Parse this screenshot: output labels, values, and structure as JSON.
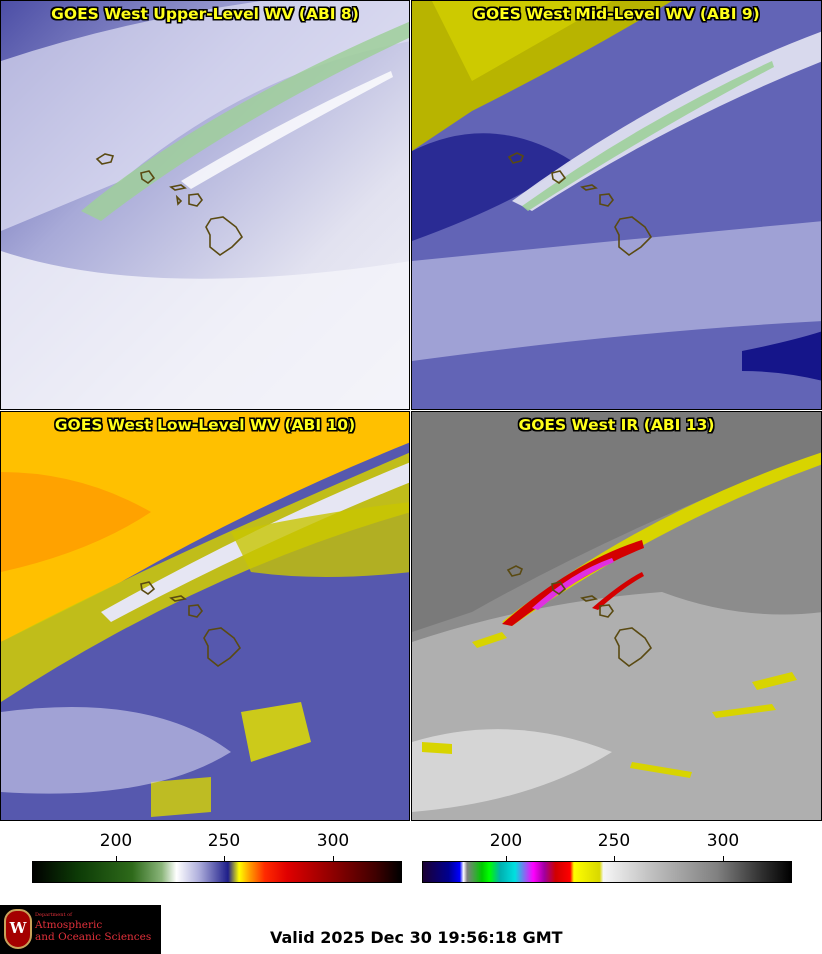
{
  "panels": [
    {
      "title": "GOES West Upper-Level WV (ABI 8)"
    },
    {
      "title": "GOES West Mid-Level WV (ABI 9)"
    },
    {
      "title": "GOES West Low-Level WV (ABI 10)"
    },
    {
      "title": "GOES West IR (ABI 13)"
    }
  ],
  "colorbars": [
    {
      "ticks": [
        "200",
        "250",
        "300"
      ]
    },
    {
      "ticks": [
        "200",
        "250",
        "300"
      ]
    }
  ],
  "logo": {
    "department": "Department of",
    "line1": "Atmospheric",
    "line2": "and Oceanic Sciences",
    "seal_letter": "W"
  },
  "valid_time": "Valid 2025 Dec 30 19:56:18 GMT",
  "colors": {
    "title_text": "#ffff1a",
    "coastline": "#5a4a12"
  }
}
